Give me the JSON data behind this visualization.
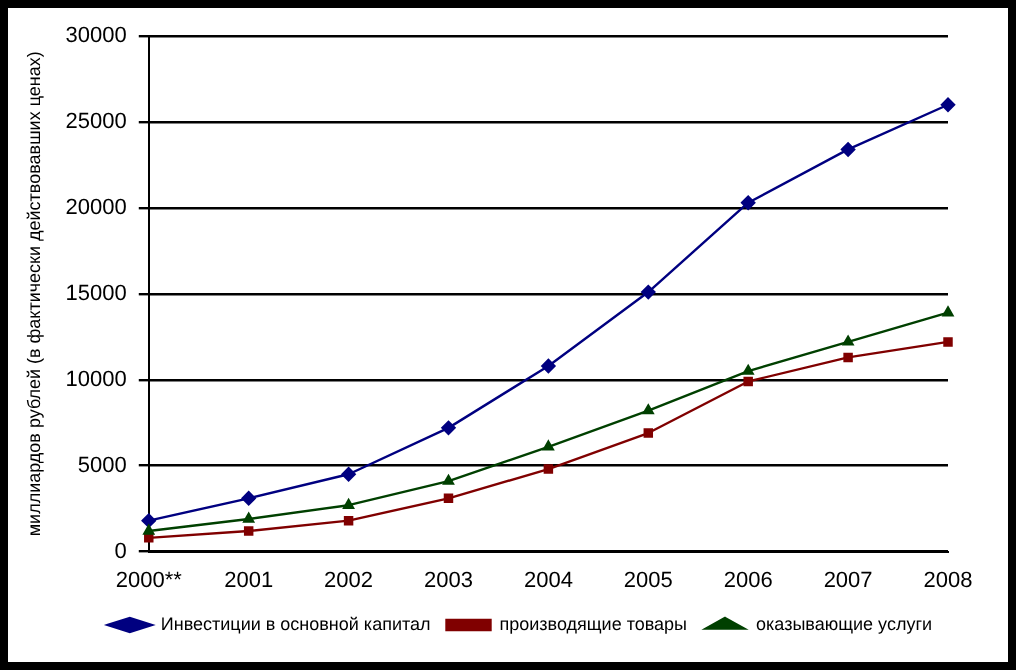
{
  "chart_data": {
    "type": "line",
    "ylabel": "миллиардов рублей (в фактически действовавших ценах)",
    "categories": [
      "2000**",
      "2001",
      "2002",
      "2003",
      "2004",
      "2005",
      "2006",
      "2007",
      "2008"
    ],
    "series": [
      {
        "name": "Инвестиции в основной капитал",
        "color": "#000080",
        "marker": "diamond",
        "values": [
          1800,
          3100,
          4500,
          7200,
          10800,
          15100,
          20300,
          23400,
          26000
        ]
      },
      {
        "name": "производящие товары",
        "color": "#800000",
        "marker": "square",
        "values": [
          800,
          1200,
          1800,
          3100,
          4800,
          6900,
          9900,
          11300,
          12200
        ]
      },
      {
        "name": "оказывающие услуги",
        "color": "#004000",
        "marker": "triangle",
        "values": [
          1200,
          1900,
          2700,
          4100,
          6100,
          8200,
          10500,
          12200,
          13900
        ]
      }
    ],
    "ylim": [
      0,
      30000
    ],
    "yticks": [
      0,
      5000,
      10000,
      15000,
      20000,
      25000,
      30000
    ],
    "grid": "y",
    "legend": "bottom"
  }
}
